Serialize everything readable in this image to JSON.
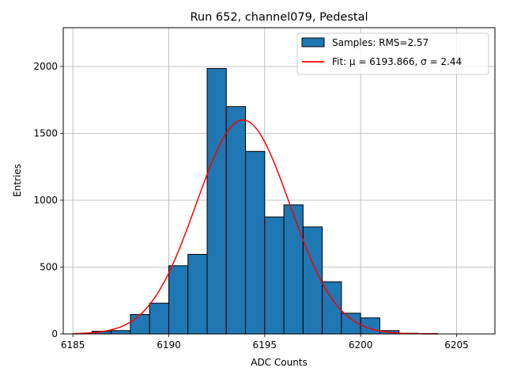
{
  "chart_data": {
    "type": "bar",
    "title": "Run 652, channel079, Pedestal",
    "xlabel": "ADC Counts",
    "ylabel": "Entries",
    "xlim": [
      6184.5,
      6207
    ],
    "ylim": [
      0,
      2290
    ],
    "xticks": [
      6185,
      6190,
      6195,
      6200,
      6205
    ],
    "yticks": [
      0,
      500,
      1000,
      1500,
      2000
    ],
    "grid": true,
    "legend_position": "top-right",
    "bin_width": 1,
    "bins": [
      {
        "x": 6186,
        "value": 20
      },
      {
        "x": 6187,
        "value": 25
      },
      {
        "x": 6188,
        "value": 145
      },
      {
        "x": 6189,
        "value": 230
      },
      {
        "x": 6190,
        "value": 510
      },
      {
        "x": 6191,
        "value": 595
      },
      {
        "x": 6192,
        "value": 1985
      },
      {
        "x": 6193,
        "value": 1700
      },
      {
        "x": 6194,
        "value": 1365
      },
      {
        "x": 6195,
        "value": 875
      },
      {
        "x": 6196,
        "value": 965
      },
      {
        "x": 6197,
        "value": 800
      },
      {
        "x": 6198,
        "value": 390
      },
      {
        "x": 6199,
        "value": 155
      },
      {
        "x": 6200,
        "value": 120
      },
      {
        "x": 6201,
        "value": 25
      },
      {
        "x": 6202,
        "value": 5
      },
      {
        "x": 6203,
        "value": 3
      }
    ],
    "fit": {
      "mu": 6193.866,
      "sigma": 2.44,
      "peak": 1600,
      "x_range": [
        6185,
        6204
      ]
    },
    "series": [
      {
        "name": "Samples: RMS=2.57",
        "kind": "histogram",
        "color": "#1f77b4"
      },
      {
        "name": "Fit: μ = 6193.866, σ = 2.44",
        "kind": "line",
        "color": "#ff0000"
      }
    ]
  }
}
